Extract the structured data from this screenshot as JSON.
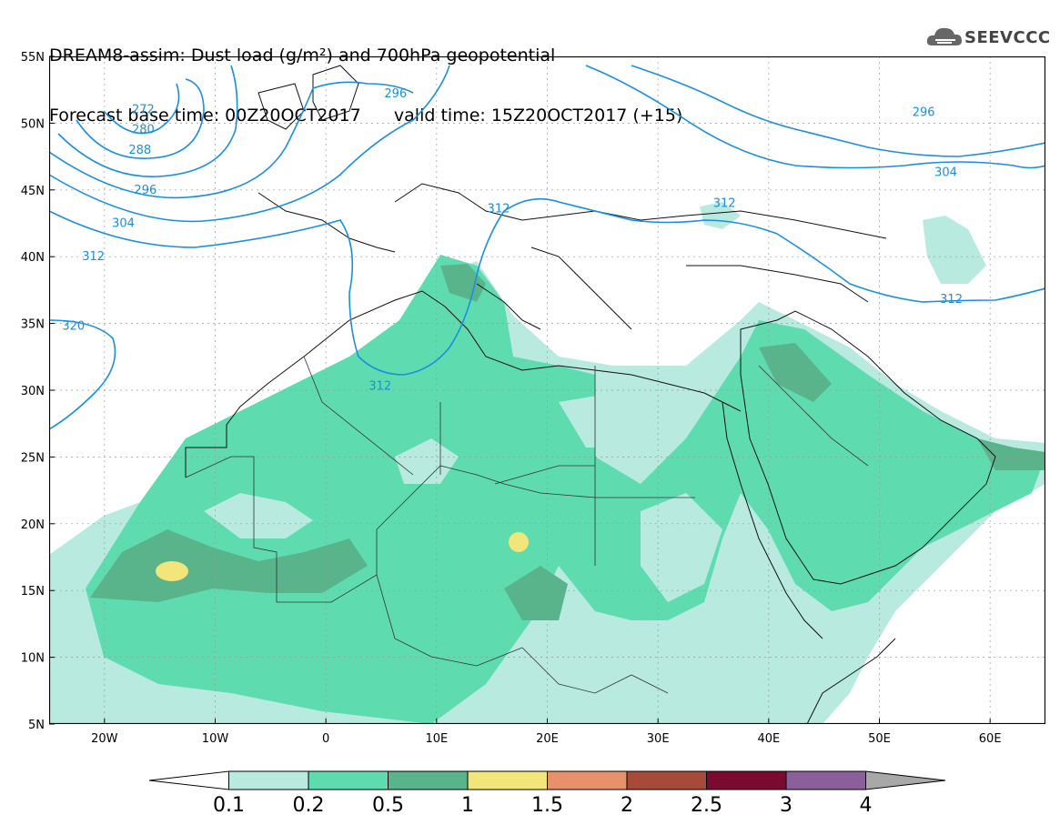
{
  "header": {
    "title_line1": "DREAM8-assim: Dust load (g/m²) and 700hPa geopotential",
    "title_line2": "Forecast base time: 00Z20OCT2017      valid time: 15Z20OCT2017 (+15)",
    "logo_text": "SEEVCCC"
  },
  "axes": {
    "lon_labels": [
      "20W",
      "10W",
      "0",
      "10E",
      "20E",
      "30E",
      "40E",
      "50E",
      "60E"
    ],
    "lon_values": [
      -20,
      -10,
      0,
      10,
      20,
      30,
      40,
      50,
      60
    ],
    "lat_labels": [
      "55N",
      "50N",
      "45N",
      "40N",
      "35N",
      "30N",
      "25N",
      "20N",
      "15N",
      "10N",
      "5N"
    ],
    "lat_values": [
      55,
      50,
      45,
      40,
      35,
      30,
      25,
      20,
      15,
      10,
      5
    ],
    "lon_range": [
      -25,
      65
    ],
    "lat_range": [
      5,
      55
    ],
    "grid": true
  },
  "contours": {
    "color": "#1a8fe0",
    "labels": [
      {
        "text": "272",
        "lon": -16.5,
        "lat": 51.0
      },
      {
        "text": "280",
        "lon": -16.5,
        "lat": 49.5
      },
      {
        "text": "288",
        "lon": -16.8,
        "lat": 48.0
      },
      {
        "text": "296",
        "lon": -16.3,
        "lat": 45.0
      },
      {
        "text": "304",
        "lon": -18.3,
        "lat": 42.5
      },
      {
        "text": "312",
        "lon": -21.0,
        "lat": 40.0
      },
      {
        "text": "320",
        "lon": -22.8,
        "lat": 34.8
      },
      {
        "text": "296",
        "lon": 6.3,
        "lat": 52.2
      },
      {
        "text": "312",
        "lon": 4.9,
        "lat": 30.3
      },
      {
        "text": "312",
        "lon": 15.6,
        "lat": 43.6
      },
      {
        "text": "312",
        "lon": 36.0,
        "lat": 44.0
      },
      {
        "text": "296",
        "lon": 54.0,
        "lat": 50.8
      },
      {
        "text": "304",
        "lon": 56.0,
        "lat": 46.3
      },
      {
        "text": "312",
        "lon": 56.5,
        "lat": 36.8
      }
    ]
  },
  "colorbar": {
    "labels": [
      "0.1",
      "0.2",
      "0.5",
      "1",
      "1.5",
      "2",
      "2.5",
      "3",
      "4"
    ],
    "colors": [
      "#ffffff",
      "#b8eadf",
      "#5edcb0",
      "#59b48c",
      "#f2e67a",
      "#e8906a",
      "#a84a3a",
      "#7a0a30",
      "#8a5f9a",
      "#a8a8a8"
    ]
  },
  "dust_colors": {
    "light": "#b8eadf",
    "medium": "#5edcb0",
    "dark": "#59b48c",
    "yellow": "#f2e67a"
  }
}
